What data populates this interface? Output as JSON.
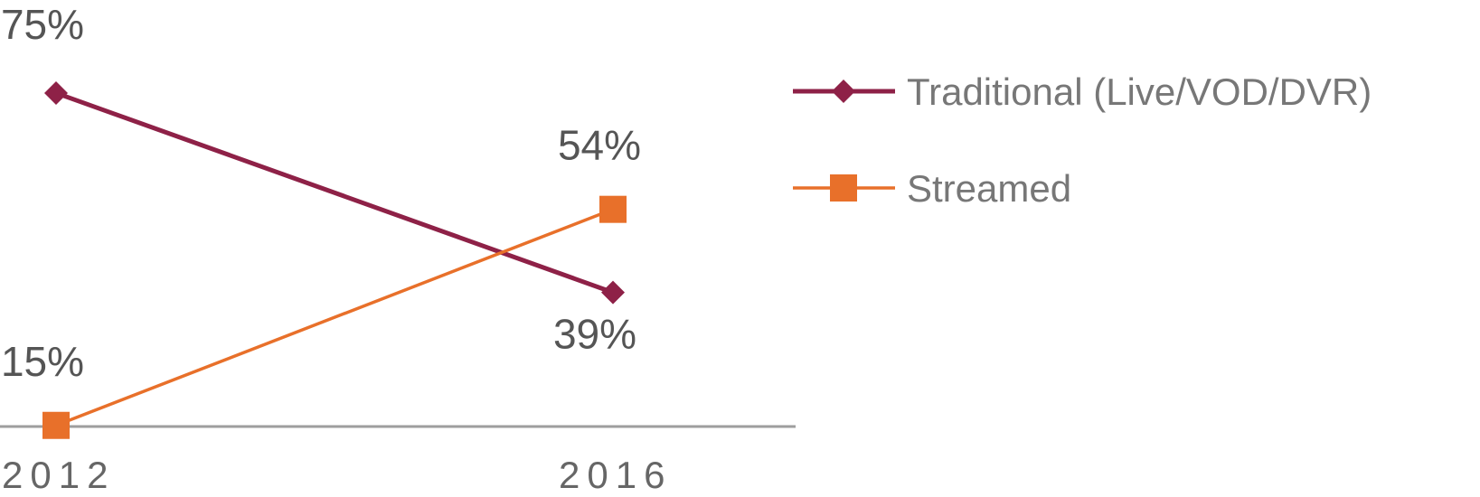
{
  "chart_data": {
    "type": "line",
    "x": [
      "2012",
      "2016"
    ],
    "series": [
      {
        "name": "Traditional (Live/VOD/DVR)",
        "values": [
          75,
          39
        ],
        "labels": [
          "75%",
          "39%"
        ],
        "color": "#8e2147",
        "marker": "diamond"
      },
      {
        "name": "Streamed",
        "values": [
          15,
          54
        ],
        "labels": [
          "15%",
          "54%"
        ],
        "color": "#e8702a",
        "marker": "square"
      }
    ],
    "ylim": [
      0,
      100
    ],
    "grid": false,
    "legend_position": "right",
    "title": "",
    "xlabel": "",
    "ylabel": ""
  }
}
